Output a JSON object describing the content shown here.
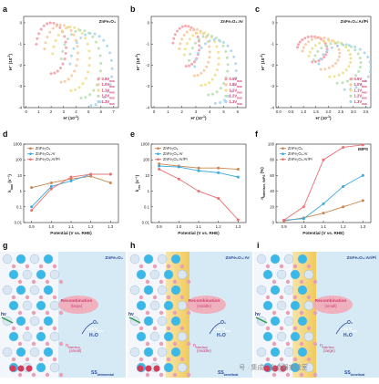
{
  "colors": {
    "sienna": "#c8864e",
    "blue": "#39a9dc",
    "pink": "#ec6f72",
    "n1": "#f2a0a8",
    "n2": "#f8c9a2",
    "n3": "#f1df88",
    "n4": "#b8e0b4",
    "n5": "#a8d6f0",
    "n_label": "#d23b6e"
  },
  "panel_letters": [
    "a",
    "b",
    "c",
    "d",
    "e",
    "f",
    "g",
    "h",
    "i"
  ],
  "nyquist": {
    "xlabel_main": "H' (10",
    "xlabel_exp": "-1",
    "xlabel_end": ")",
    "ylabel_main": "H'' (10",
    "ylabel_exp": "-2",
    "ylabel_end": ")",
    "ylim": [
      -4,
      0.3
    ],
    "yticks": [
      "0",
      "-1",
      "-2",
      "-3",
      "-4"
    ],
    "series_labels": [
      {
        "main": "0.9V",
        "sub": "RHE"
      },
      {
        "main": "1.0V",
        "sub": "RHE"
      },
      {
        "main": "1.1V",
        "sub": "RHE"
      },
      {
        "main": "1.2V",
        "sub": "RHE"
      },
      {
        "main": "1.3V",
        "sub": "RHE"
      }
    ],
    "panels": [
      {
        "title": "ZnFe₂O₄",
        "xticks": [
          "0",
          "1",
          "2",
          "3",
          "4",
          "5",
          "6",
          "7"
        ],
        "xlim": [
          -0.2,
          7.4
        ],
        "circles": [
          {
            "cx": 2.0,
            "cy": -1.2,
            "r": 1.2
          },
          {
            "cx": 2.8,
            "cy": -1.45,
            "r": 1.35
          },
          {
            "cx": 3.6,
            "cy": -1.7,
            "r": 1.5
          },
          {
            "cx": 4.4,
            "cy": -1.95,
            "r": 1.6
          },
          {
            "cx": 5.2,
            "cy": -2.2,
            "r": 1.7
          }
        ]
      },
      {
        "title": "ZnFe₂O₄:Ar",
        "xticks": [
          "0",
          "1",
          "2",
          "3",
          "4",
          "5",
          "6"
        ],
        "xlim": [
          -0.2,
          6.6
        ],
        "circles": [
          {
            "cx": 2.3,
            "cy": -1.1,
            "r": 0.95
          },
          {
            "cx": 2.9,
            "cy": -1.4,
            "r": 1.1
          },
          {
            "cx": 3.4,
            "cy": -1.7,
            "r": 1.25
          },
          {
            "cx": 3.9,
            "cy": -2.0,
            "r": 1.4
          },
          {
            "cx": 4.4,
            "cy": -2.3,
            "r": 1.5
          }
        ]
      },
      {
        "title": "ZnFe₂O₄:Ar/Pi",
        "xticks": [
          "0.0",
          "0.5",
          "1.0",
          "1.5",
          "2.0",
          "2.5",
          "3.0",
          "3.5"
        ],
        "xlim": [
          -0.1,
          3.7
        ],
        "circles": [
          {
            "cx": 1.35,
            "cy": -1.25,
            "r": 0.6
          },
          {
            "cx": 1.7,
            "cy": -1.45,
            "r": 0.75
          },
          {
            "cx": 2.05,
            "cy": -1.7,
            "r": 0.85
          },
          {
            "cx": 2.35,
            "cy": -1.9,
            "r": 0.95
          },
          {
            "cx": 2.65,
            "cy": -2.1,
            "r": 1.05
          }
        ]
      }
    ]
  },
  "chart_data": [
    {
      "type": "line",
      "xlabel": "Potential (V vs. RHE)",
      "ylabel_main": "k",
      "ylabel_sub": "tran",
      "ylabel_end": " (s⁻¹)",
      "yscale": "log",
      "ylim": [
        0.01,
        1000
      ],
      "yticks": [
        "0.01",
        "0.1",
        "1",
        "10",
        "100",
        "1000"
      ],
      "x": [
        0.9,
        1.0,
        1.1,
        1.2,
        1.3
      ],
      "series": [
        {
          "name": "ZnFe₂O₄",
          "values": [
            1.7,
            3.4,
            6,
            9,
            3.4
          ]
        },
        {
          "name": "ZnFe₂O₄:Ar",
          "values": [
            0.1,
            2.0,
            4.5,
            12,
            12
          ]
        },
        {
          "name": "ZnFe₂O₄:Ar/Pi",
          "values": [
            0.06,
            1.4,
            8,
            12,
            12
          ]
        }
      ]
    },
    {
      "type": "line",
      "xlabel": "Potential (V vs. RHE)",
      "ylabel_main": "k",
      "ylabel_sub": "rec",
      "ylabel_end": " (s⁻¹)",
      "yscale": "log",
      "ylim": [
        0.01,
        1000
      ],
      "yticks": [
        "0.01",
        "0.1",
        "1",
        "10",
        "100",
        "1000"
      ],
      "x": [
        0.9,
        1.0,
        1.1,
        1.2,
        1.3
      ],
      "series": [
        {
          "name": "ZnFe₂O₄",
          "values": [
            55,
            40,
            30,
            30,
            25
          ]
        },
        {
          "name": "ZnFe₂O₄:Ar",
          "values": [
            40,
            35,
            20,
            15,
            8
          ]
        },
        {
          "name": "ZnFe₂O₄:Ar/Pi",
          "values": [
            25,
            6,
            1.0,
            0.35,
            0.015
          ]
        }
      ]
    },
    {
      "type": "line",
      "tag": "IMPS",
      "xlabel": "Potential (V vs. RHE)",
      "ylabel_main": "η",
      "ylabel_sub": "Interface, IMPS",
      "ylabel_end": " (%)",
      "ylim": [
        0,
        100
      ],
      "yticks": [
        "0",
        "20",
        "40",
        "60",
        "80",
        "100"
      ],
      "x": [
        0.9,
        1.0,
        1.1,
        1.2,
        1.3
      ],
      "series": [
        {
          "name": "ZnFe₂O₄",
          "values": [
            2,
            6,
            12,
            20,
            28
          ]
        },
        {
          "name": "ZnFe₂O₄:Ar",
          "values": [
            3,
            5,
            24,
            46,
            60
          ]
        },
        {
          "name": "ZnFe₂O₄:Ar/Pi",
          "values": [
            3,
            20,
            80,
            96,
            99
          ]
        }
      ]
    }
  ],
  "xticks_rate": [
    "0.9",
    "1.0",
    "1.1",
    "1.2",
    "1.3"
  ],
  "schematics": [
    {
      "title": "ZnFe₂O₄",
      "recomb": "Recombination",
      "recomb_level": "(large)",
      "eta": "η",
      "eta_sub": "Interface",
      "eta_level": "(small)",
      "ss_main": "SS",
      "ss_sub": "detrimental"
    },
    {
      "title": "ZnFe₂O₄:Ar",
      "recomb": "Recombination",
      "recomb_level": "(middle)",
      "eta": "η",
      "eta_sub": "Interface",
      "eta_level": "(middle)",
      "ss_main": "SS",
      "ss_sub": "beneficial"
    },
    {
      "title": "ZnFe₂O₄:Ar/Pi",
      "recomb": "Recombination",
      "recomb_level": "(small)",
      "eta": "η",
      "eta_sub": "Interface",
      "eta_level": "(large)",
      "ss_main": "SS",
      "ss_sub": "beneficial"
    }
  ],
  "schematic_text": {
    "hv": "hν",
    "o2": "O₂",
    "voltage": "1.23 V",
    "voltage_sub": "RHE",
    "h2o": "H₂O"
  },
  "watermark": "号 · 集成 · 全合器实验室"
}
